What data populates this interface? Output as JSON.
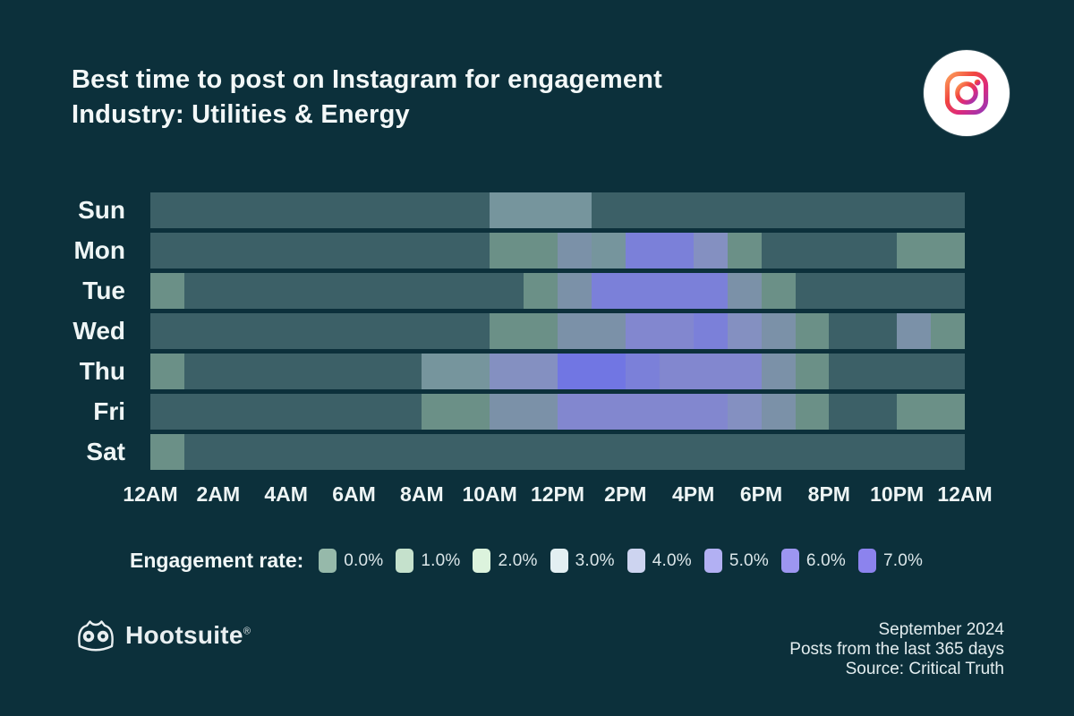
{
  "colors": {
    "background": "#0c303b",
    "text_primary": "#f3f8f8",
    "text_secondary": "#e3edef",
    "row_base": "#3c6067"
  },
  "chart_data": {
    "type": "heatmap",
    "title": "Best time to post on Instagram for engagement",
    "subtitle": "Industry: Utilities & Energy",
    "value_unit": "engagement rate %",
    "days": [
      "Sun",
      "Mon",
      "Tue",
      "Wed",
      "Thu",
      "Fri",
      "Sat"
    ],
    "hours_per_row": 24,
    "x_tick_labels": [
      "12AM",
      "2AM",
      "4AM",
      "6AM",
      "8AM",
      "10AM",
      "12PM",
      "2PM",
      "4PM",
      "6PM",
      "8PM",
      "10PM",
      "12AM"
    ],
    "legend": {
      "label": "Engagement rate:",
      "buckets": [
        {
          "label": "0.0%",
          "color": "#96b9aa"
        },
        {
          "label": "1.0%",
          "color": "#c5e1cc"
        },
        {
          "label": "2.0%",
          "color": "#dcf3dd"
        },
        {
          "label": "3.0%",
          "color": "#e3eff2"
        },
        {
          "label": "4.0%",
          "color": "#cdd4f0"
        },
        {
          "label": "5.0%",
          "color": "#b2b0f3"
        },
        {
          "label": "6.0%",
          "color": "#9d96f1"
        },
        {
          "label": "7.0%",
          "color": "#8c83ee"
        }
      ]
    },
    "cell_palette": {
      "0": "#3c6067",
      "1": "#6b9087",
      "2": "#76959d",
      "3": "#7b91a8",
      "4": "#8490c1",
      "5": "#8287cf",
      "6": "#7b80d9",
      "7": "#7176e3"
    },
    "grid": {
      "Sun": [
        0,
        0,
        0,
        0,
        0,
        0,
        0,
        0,
        0,
        0,
        2,
        2,
        2,
        0,
        0,
        0,
        0,
        0,
        0,
        0,
        0,
        0,
        0,
        0
      ],
      "Mon": [
        0,
        0,
        0,
        0,
        0,
        0,
        0,
        0,
        0,
        0,
        1,
        1,
        3,
        2,
        6,
        6,
        4,
        1,
        0,
        0,
        0,
        0,
        1,
        1
      ],
      "Tue": [
        1,
        0,
        0,
        0,
        0,
        0,
        0,
        0,
        0,
        0,
        0,
        1,
        3,
        6,
        6,
        6,
        6,
        3,
        1,
        0,
        0,
        0,
        0,
        0
      ],
      "Wed": [
        0,
        0,
        0,
        0,
        0,
        0,
        0,
        0,
        0,
        0,
        1,
        1,
        3,
        3,
        5,
        5,
        6,
        4,
        3,
        1,
        0,
        0,
        3,
        1
      ],
      "Thu": [
        1,
        0,
        0,
        0,
        0,
        0,
        0,
        0,
        2,
        2,
        4,
        4,
        7,
        7,
        6,
        5,
        5,
        5,
        3,
        1,
        0,
        0,
        0,
        0
      ],
      "Fri": [
        0,
        0,
        0,
        0,
        0,
        0,
        0,
        0,
        1,
        1,
        3,
        3,
        5,
        5,
        5,
        5,
        5,
        4,
        3,
        1,
        0,
        0,
        1,
        1
      ],
      "Sat": [
        1,
        0,
        0,
        0,
        0,
        0,
        0,
        0,
        0,
        0,
        0,
        0,
        0,
        0,
        0,
        0,
        0,
        0,
        0,
        0,
        0,
        0,
        0,
        0
      ]
    }
  },
  "footer": {
    "brand": "Hootsuite",
    "brand_reg": "®",
    "date": "September 2024",
    "note": "Posts from the last 365 days",
    "source": "Source: Critical Truth"
  }
}
